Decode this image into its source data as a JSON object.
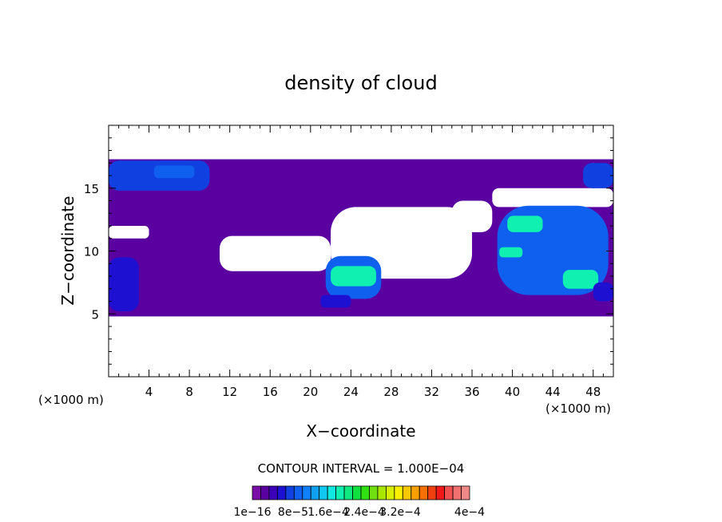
{
  "chart_data": {
    "type": "heatmap",
    "title": "density of cloud",
    "xlabel": "X−coordinate",
    "ylabel": "Z−coordinate",
    "x_unit_left": "(×1000 m)",
    "x_unit_right": "(×1000 m)",
    "xlim": [
      0,
      50
    ],
    "ylim": [
      0,
      20
    ],
    "x_ticks": [
      4,
      8,
      12,
      16,
      20,
      24,
      28,
      32,
      36,
      40,
      44,
      48
    ],
    "y_ticks": [
      5,
      10,
      15
    ],
    "contour_interval_text": "CONTOUR INTERVAL = 1.000E−04",
    "colorbar_labels": [
      "1e−16",
      "8e−5",
      "1.6e−4",
      "2.4e−4",
      "3.2e−4",
      "4e−4"
    ],
    "colorbar_colors": [
      "#7a0fa8",
      "#5a00a0",
      "#3b00b8",
      "#1e10d0",
      "#1040e0",
      "#1060f0",
      "#1080f8",
      "#10a0f0",
      "#10c8f0",
      "#10e8e0",
      "#10f0b0",
      "#10e880",
      "#10e040",
      "#30e010",
      "#70e010",
      "#a8e800",
      "#d8f000",
      "#f8f000",
      "#f8c800",
      "#f8a000",
      "#f87000",
      "#f04010",
      "#f01818",
      "#f05050",
      "#f07070",
      "#f08888"
    ],
    "regions": [
      {
        "level": 1,
        "shape": "band",
        "x": [
          0,
          50
        ],
        "y": [
          4.8,
          17.3
        ]
      },
      {
        "level": 0,
        "shape": "clear",
        "x": [
          11,
          22
        ],
        "y": [
          8.4,
          11.2
        ]
      },
      {
        "level": 0,
        "shape": "clear",
        "x": [
          22,
          36
        ],
        "y": [
          7.8,
          13.5
        ]
      },
      {
        "level": 0,
        "shape": "clear",
        "x": [
          34,
          38
        ],
        "y": [
          11.5,
          14
        ]
      },
      {
        "level": 0,
        "shape": "clear",
        "x": [
          0,
          4
        ],
        "y": [
          11,
          12
        ]
      },
      {
        "level": 0,
        "shape": "clear",
        "x": [
          38,
          50
        ],
        "y": [
          13.5,
          15
        ]
      },
      {
        "level": 4,
        "shape": "patch",
        "x": [
          0,
          10
        ],
        "y": [
          14.8,
          17.2
        ]
      },
      {
        "level": 5,
        "shape": "patch",
        "x": [
          4.5,
          8.5
        ],
        "y": [
          15.8,
          16.8
        ]
      },
      {
        "level": 4,
        "shape": "patch",
        "x": [
          47,
          50
        ],
        "y": [
          15,
          17
        ]
      },
      {
        "level": 5,
        "shape": "patch",
        "x": [
          21.5,
          27
        ],
        "y": [
          6.2,
          9.6
        ]
      },
      {
        "level": 10,
        "shape": "patch",
        "x": [
          22,
          26.5
        ],
        "y": [
          7.2,
          8.8
        ]
      },
      {
        "level": 5,
        "shape": "patch",
        "x": [
          38.5,
          49.5
        ],
        "y": [
          6.5,
          13.6
        ]
      },
      {
        "level": 10,
        "shape": "patch",
        "x": [
          39.5,
          43
        ],
        "y": [
          11.5,
          12.8
        ]
      },
      {
        "level": 10,
        "shape": "patch",
        "x": [
          45,
          48.5
        ],
        "y": [
          7,
          8.5
        ]
      },
      {
        "level": 10,
        "shape": "patch",
        "x": [
          38.7,
          41
        ],
        "y": [
          9.5,
          10.3
        ]
      },
      {
        "level": 3,
        "shape": "patch",
        "x": [
          0,
          3
        ],
        "y": [
          5.2,
          9.5
        ]
      },
      {
        "level": 3,
        "shape": "patch",
        "x": [
          21,
          24
        ],
        "y": [
          5.5,
          6.5
        ]
      },
      {
        "level": 3,
        "shape": "patch",
        "x": [
          48,
          50
        ],
        "y": [
          6,
          7.5
        ]
      }
    ]
  }
}
